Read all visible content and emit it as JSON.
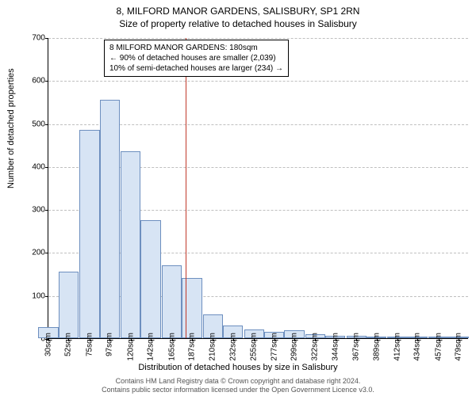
{
  "title": {
    "line1": "8, MILFORD MANOR GARDENS, SALISBURY, SP1 2RN",
    "line2": "Size of property relative to detached houses in Salisbury"
  },
  "chart": {
    "type": "histogram",
    "ylabel": "Number of detached properties",
    "xlabel": "Distribution of detached houses by size in Salisbury",
    "ylim": [
      0,
      700
    ],
    "ytick_step": 100,
    "xticks": [
      {
        "label": "30sqm",
        "value": 30
      },
      {
        "label": "52sqm",
        "value": 52
      },
      {
        "label": "75sqm",
        "value": 75
      },
      {
        "label": "97sqm",
        "value": 97
      },
      {
        "label": "120sqm",
        "value": 120
      },
      {
        "label": "142sqm",
        "value": 142
      },
      {
        "label": "165sqm",
        "value": 165
      },
      {
        "label": "187sqm",
        "value": 187
      },
      {
        "label": "210sqm",
        "value": 210
      },
      {
        "label": "232sqm",
        "value": 232
      },
      {
        "label": "255sqm",
        "value": 255
      },
      {
        "label": "277sqm",
        "value": 277
      },
      {
        "label": "299sqm",
        "value": 299
      },
      {
        "label": "322sqm",
        "value": 322
      },
      {
        "label": "344sqm",
        "value": 344
      },
      {
        "label": "367sqm",
        "value": 367
      },
      {
        "label": "389sqm",
        "value": 389
      },
      {
        "label": "412sqm",
        "value": 412
      },
      {
        "label": "434sqm",
        "value": 434
      },
      {
        "label": "457sqm",
        "value": 457
      },
      {
        "label": "479sqm",
        "value": 479
      }
    ],
    "bars": [
      {
        "x": 30,
        "count": 25
      },
      {
        "x": 52,
        "count": 155
      },
      {
        "x": 75,
        "count": 485
      },
      {
        "x": 97,
        "count": 555
      },
      {
        "x": 120,
        "count": 435
      },
      {
        "x": 142,
        "count": 275
      },
      {
        "x": 165,
        "count": 170
      },
      {
        "x": 187,
        "count": 140
      },
      {
        "x": 210,
        "count": 55
      },
      {
        "x": 232,
        "count": 30
      },
      {
        "x": 255,
        "count": 20
      },
      {
        "x": 277,
        "count": 15
      },
      {
        "x": 299,
        "count": 18
      },
      {
        "x": 322,
        "count": 10
      },
      {
        "x": 344,
        "count": 5
      },
      {
        "x": 367,
        "count": 5
      },
      {
        "x": 389,
        "count": 3
      },
      {
        "x": 412,
        "count": 3
      },
      {
        "x": 434,
        "count": 2
      },
      {
        "x": 457,
        "count": 2
      },
      {
        "x": 479,
        "count": 2
      }
    ],
    "bar_color": "#d7e4f4",
    "bar_border_color": "#6d8fbf",
    "grid_color": "#bfbfbf",
    "background_color": "#ffffff",
    "marker": {
      "value": 180,
      "color": "#c0392b"
    },
    "annotation": {
      "line1": "8 MILFORD MANOR GARDENS: 180sqm",
      "line2": "← 90% of detached houses are smaller (2,039)",
      "line3": "10% of semi-detached houses are larger (234) →"
    },
    "xmin": 30,
    "xmax": 490,
    "bar_width_units": 22
  },
  "footer": {
    "line1": "Contains HM Land Registry data © Crown copyright and database right 2024.",
    "line2": "Contains public sector information licensed under the Open Government Licence v3.0."
  }
}
